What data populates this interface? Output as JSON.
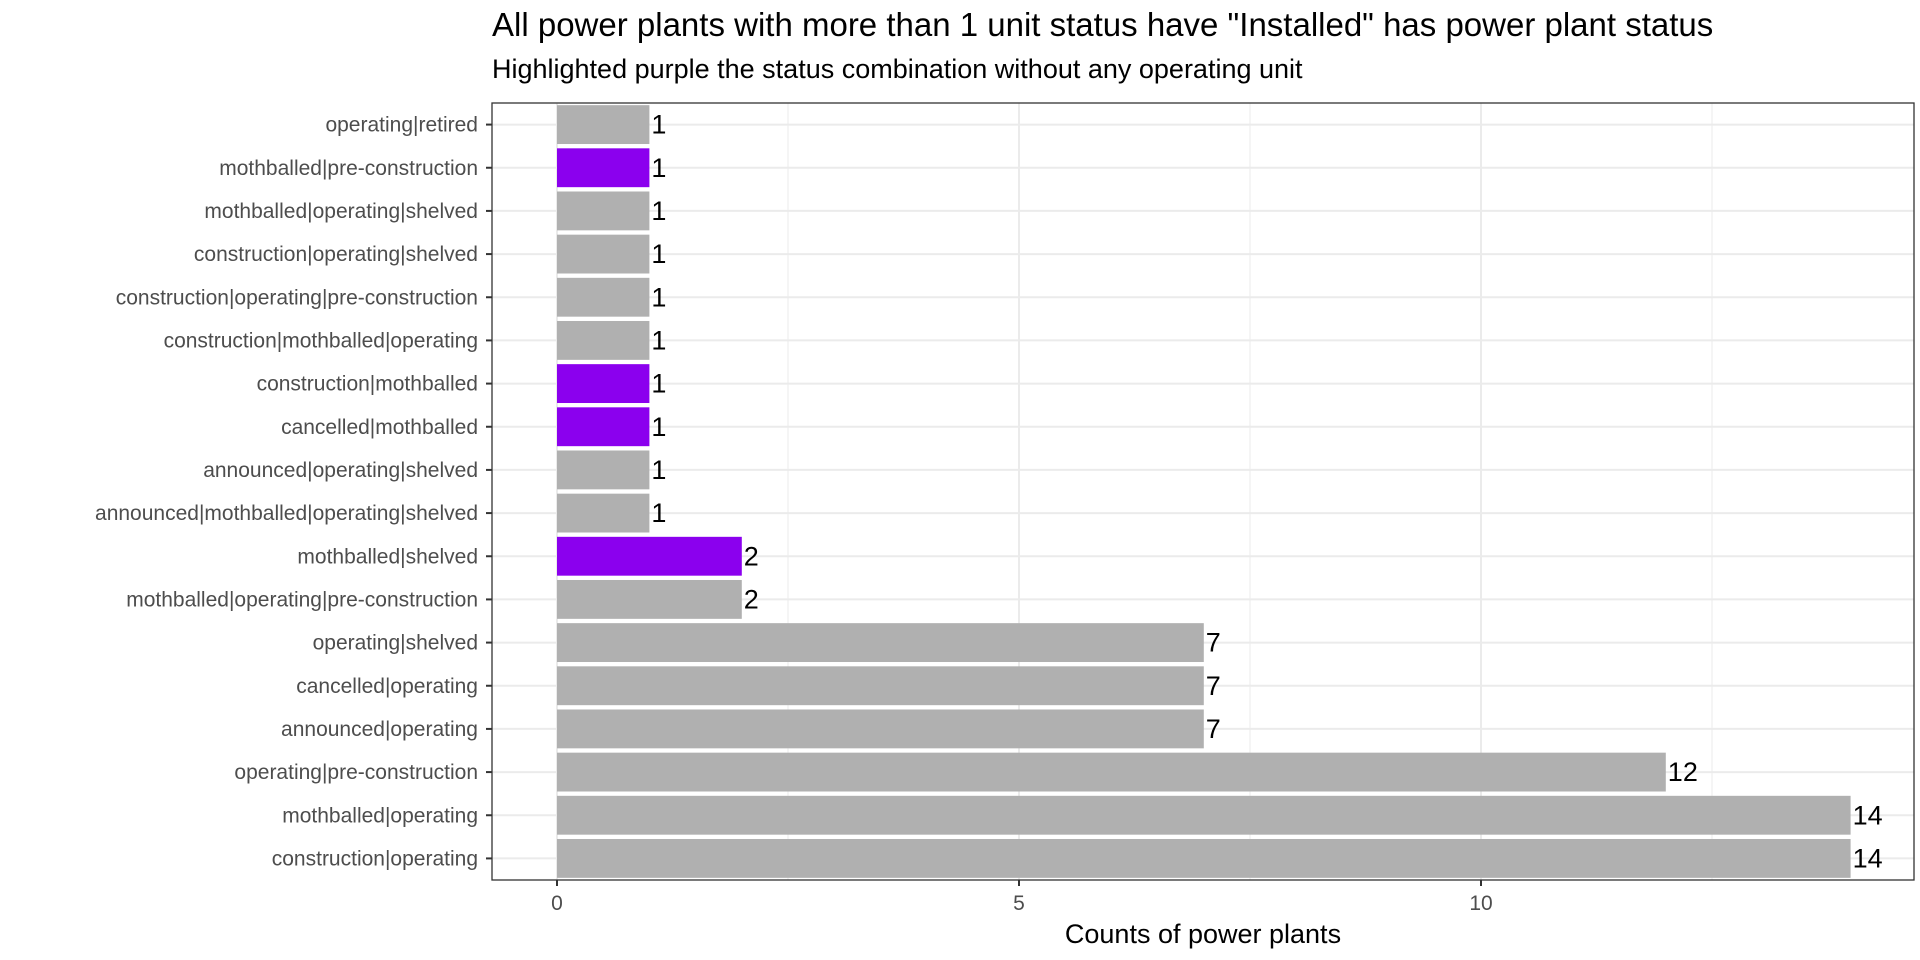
{
  "chart_data": {
    "type": "bar",
    "orientation": "horizontal",
    "title": "All power plants with more than 1 unit status have \"Installed\" has power plant status",
    "subtitle": "Highlighted purple the status combination without any operating unit",
    "xlabel": "Counts of power plants",
    "ylabel": "",
    "xlim": [
      0,
      14
    ],
    "x_ticks": [
      0,
      5,
      10
    ],
    "grid": true,
    "colors": {
      "default": "#b0b0b0",
      "highlight": "#8b00ee"
    },
    "categories": [
      "operating|retired",
      "mothballed|pre-construction",
      "mothballed|operating|shelved",
      "construction|operating|shelved",
      "construction|operating|pre-construction",
      "construction|mothballed|operating",
      "construction|mothballed",
      "cancelled|mothballed",
      "announced|operating|shelved",
      "announced|mothballed|operating|shelved",
      "mothballed|shelved",
      "mothballed|operating|pre-construction",
      "operating|shelved",
      "cancelled|operating",
      "announced|operating",
      "operating|pre-construction",
      "mothballed|operating",
      "construction|operating"
    ],
    "values": [
      1,
      1,
      1,
      1,
      1,
      1,
      1,
      1,
      1,
      1,
      2,
      2,
      7,
      7,
      7,
      12,
      14,
      14
    ],
    "highlighted": [
      false,
      true,
      false,
      false,
      false,
      false,
      true,
      true,
      false,
      false,
      true,
      false,
      false,
      false,
      false,
      false,
      false,
      false
    ]
  }
}
